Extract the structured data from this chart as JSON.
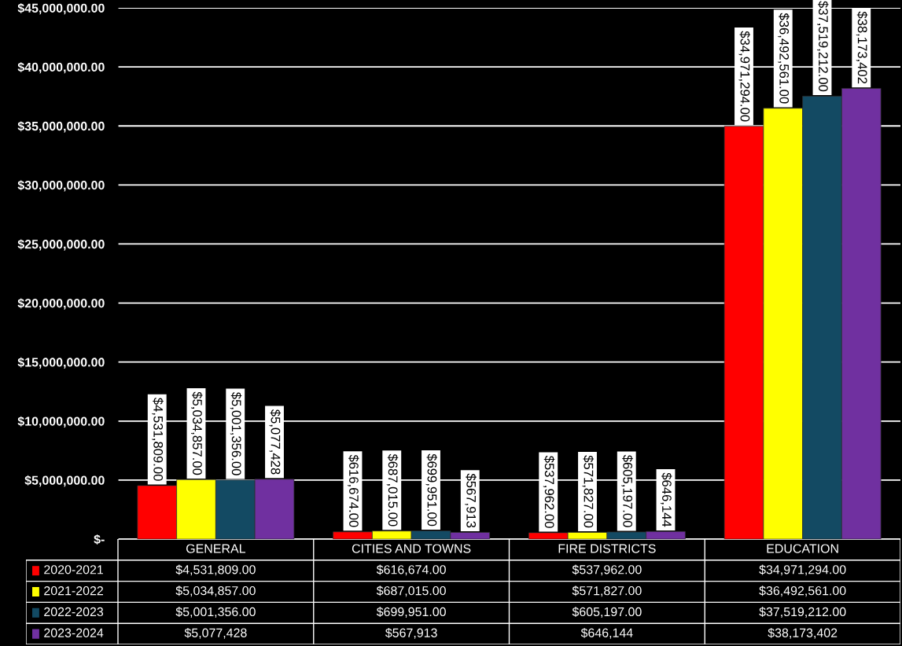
{
  "chart_data": {
    "type": "bar",
    "categories": [
      "GENERAL",
      "CITIES AND TOWNS",
      "FIRE DISTRICTS",
      "EDUCATION"
    ],
    "series": [
      {
        "name": "2020-2021",
        "color": "#ff0000",
        "values": [
          4531809.0,
          616674.0,
          537962.0,
          34971294.0
        ],
        "value_labels": [
          "$4,531,809.00",
          "$616,674.00",
          "$537,962.00",
          "$34,971,294.00"
        ]
      },
      {
        "name": "2021-2022",
        "color": "#ffff00",
        "values": [
          5034857.0,
          687015.0,
          571827.0,
          36492561.0
        ],
        "value_labels": [
          "$5,034,857.00",
          "$687,015.00",
          "$571,827.00",
          "$36,492,561.00"
        ]
      },
      {
        "name": "2022-2023",
        "color": "#134a63",
        "values": [
          5001356.0,
          699951.0,
          605197.0,
          37519212.0
        ],
        "value_labels": [
          "$5,001,356.00",
          "$699,951.00",
          "$605,197.00",
          "$37,519,212.00"
        ]
      },
      {
        "name": "2023-2024",
        "color": "#7030a0",
        "values": [
          5077428,
          567913,
          646144,
          38173402
        ],
        "value_labels": [
          "$5,077,428",
          "$567,913",
          "$646,144",
          "$38,173,402"
        ]
      }
    ],
    "ylim": [
      0,
      45000000
    ],
    "yticks": [
      {
        "value": 0,
        "label": "$-"
      },
      {
        "value": 5000000,
        "label": "$5,000,000.00"
      },
      {
        "value": 10000000,
        "label": "$10,000,000.00"
      },
      {
        "value": 15000000,
        "label": "$15,000,000.00"
      },
      {
        "value": 20000000,
        "label": "$20,000,000.00"
      },
      {
        "value": 25000000,
        "label": "$25,000,000.00"
      },
      {
        "value": 30000000,
        "label": "$30,000,000.00"
      },
      {
        "value": 35000000,
        "label": "$35,000,000.00"
      },
      {
        "value": 40000000,
        "label": "$40,000,000.00"
      },
      {
        "value": 45000000,
        "label": "$45,000,000.00"
      }
    ],
    "grid": "y",
    "legend": "bottom"
  }
}
